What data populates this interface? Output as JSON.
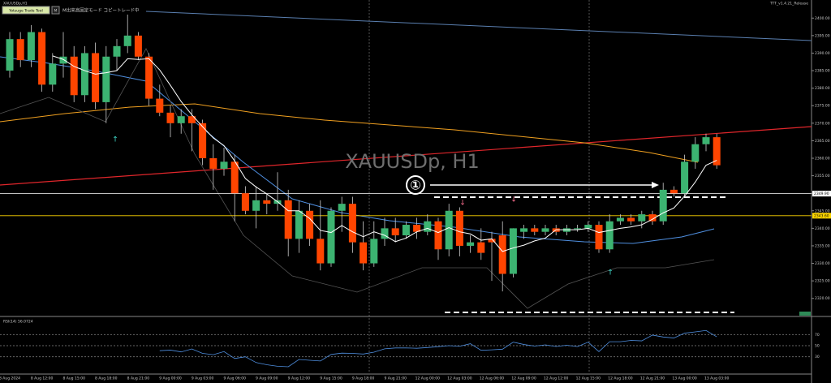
{
  "toolbar": {
    "symbol": "XAUUSDp,H1",
    "button": "Yotsuge Trade Tool",
    "mode": "M",
    "status": "M出来高固定モード コピートレード中",
    "version": "TTT_v1.4.21_Release"
  },
  "chart_data": {
    "type": "candlestick",
    "title": "XAUUSDp, H1",
    "annotation": "①",
    "up_color": "#3cb371",
    "down_color": "#ff4500",
    "categories": [
      "8 Aug 2024",
      null,
      null,
      "8 Aug 12:00",
      null,
      null,
      "8 Aug 15:00",
      null,
      null,
      "8 Aug 18:00",
      null,
      null,
      "8 Aug 21:00",
      null,
      null,
      "9 Aug 00:00",
      null,
      null,
      "9 Aug 03:00",
      null,
      null,
      "9 Aug 06:00",
      null,
      null,
      "9 Aug 09:00",
      null,
      null,
      "9 Aug 12:00",
      null,
      null,
      "9 Aug 15:00",
      null,
      null,
      "9 Aug 18:00",
      null,
      null,
      "9 Aug 21:00",
      null,
      null,
      "12 Aug 00:00",
      null,
      null,
      "12 Aug 03:00",
      null,
      null,
      "12 Aug 06:00",
      null,
      null,
      "12 Aug 09:00",
      null,
      null,
      "12 Aug 12:00",
      null,
      null,
      "12 Aug 15:00",
      null,
      null,
      "12 Aug 18:00",
      null,
      null,
      "12 Aug 21:00",
      null,
      null,
      "13 Aug 00:00",
      null,
      null,
      "13 Aug 03:00"
    ],
    "open": [
      2385,
      2394,
      2388,
      2396,
      2381,
      2387,
      2389,
      2378,
      2390,
      2376,
      2389,
      2392,
      2395,
      2389,
      2377,
      2373,
      2370,
      2372,
      2370,
      2360,
      2357,
      2359,
      2350,
      2345,
      2348,
      2347,
      2348,
      2337,
      2345,
      2337,
      2330,
      2345,
      2347,
      2336,
      2330,
      2337,
      2340,
      2338,
      2341,
      2339,
      2342,
      2334,
      2345,
      2335,
      2336,
      2337,
      2338,
      2327,
      2339,
      2340,
      2339,
      2340,
      2339,
      2340,
      2340,
      2341,
      2334,
      2342,
      2343,
      2342,
      2344,
      2342,
      2351,
      2350,
      2359,
      2364,
      2366
    ],
    "high": [
      2396,
      2396,
      2398,
      2397,
      2390,
      2396,
      2392,
      2392,
      2393,
      2392,
      2394,
      2401,
      2396,
      2390,
      2381,
      2375,
      2374,
      2374,
      2371,
      2364,
      2363,
      2361,
      2352,
      2352,
      2350,
      2356,
      2351,
      2348,
      2347,
      2348,
      2346,
      2349,
      2349,
      2342,
      2342,
      2343,
      2343,
      2342,
      2343,
      2344,
      2343,
      2347,
      2346,
      2338,
      2340,
      2339,
      2342,
      2340,
      2341,
      2341,
      2341,
      2341,
      2341,
      2341,
      2342,
      2342,
      2344,
      2344,
      2344,
      2345,
      2345,
      2353,
      2352,
      2361,
      2366,
      2367,
      2367
    ],
    "low": [
      2383,
      2386,
      2386,
      2379,
      2379,
      2383,
      2376,
      2376,
      2374,
      2370,
      2385,
      2390,
      2388,
      2375,
      2372,
      2366,
      2367,
      2362,
      2358,
      2351,
      2355,
      2342,
      2344,
      2340,
      2344,
      2345,
      2332,
      2333,
      2335,
      2328,
      2329,
      2339,
      2333,
      2328,
      2329,
      2335,
      2336,
      2337,
      2337,
      2338,
      2331,
      2332,
      2332,
      2333,
      2331,
      2325,
      2322,
      2326,
      2337,
      2338,
      2338,
      2338,
      2338,
      2339,
      2339,
      2333,
      2333,
      2341,
      2341,
      2340,
      2341,
      2341,
      2349,
      2349,
      2357,
      2362,
      2357
    ],
    "close": [
      2394,
      2388,
      2396,
      2381,
      2387,
      2389,
      2378,
      2390,
      2376,
      2389,
      2392,
      2395,
      2389,
      2377,
      2373,
      2370,
      2372,
      2370,
      2360,
      2357,
      2359,
      2350,
      2345,
      2348,
      2347,
      2348,
      2337,
      2345,
      2337,
      2330,
      2345,
      2347,
      2336,
      2330,
      2337,
      2340,
      2338,
      2341,
      2339,
      2342,
      2334,
      2345,
      2335,
      2336,
      2333,
      2336,
      2327,
      2340,
      2340,
      2339,
      2340,
      2339,
      2340,
      2340,
      2341,
      2334,
      2342,
      2343,
      2342,
      2344,
      2342,
      2351,
      2350,
      2359,
      2364,
      2366,
      2358
    ],
    "ylim": [
      2316,
      2404
    ],
    "yticks": [
      {
        "value": 2320,
        "label": "2320.00"
      },
      {
        "value": 2325,
        "label": "2325.00"
      },
      {
        "value": 2330,
        "label": "2330.00"
      },
      {
        "value": 2335,
        "label": "2335.00"
      },
      {
        "value": 2340,
        "label": "2340.00"
      },
      {
        "value": 2345,
        "label": "2345.00"
      },
      {
        "value": 2350,
        "label": "2350.00"
      },
      {
        "value": 2355,
        "label": "2355.00"
      },
      {
        "value": 2360,
        "label": "2360.00"
      },
      {
        "value": 2365,
        "label": "2365.00"
      },
      {
        "value": 2370,
        "label": "2370.00"
      },
      {
        "value": 2375,
        "label": "2375.00"
      },
      {
        "value": 2380,
        "label": "2380.00"
      },
      {
        "value": 2385,
        "label": "2385.00"
      },
      {
        "value": 2390,
        "label": "2390.00"
      },
      {
        "value": 2395,
        "label": "2395.00"
      },
      {
        "value": 2400,
        "label": "2400.00"
      }
    ],
    "price_lines": [
      {
        "value": 2349.9,
        "label": "2349.90",
        "color": "#ffffff"
      },
      {
        "value": 2343.6,
        "label": "2343.60",
        "color": "#ffd700"
      }
    ],
    "rsi": {
      "label": "RSI(14) 56.0724",
      "ylim": [
        0,
        100
      ],
      "yticks": [
        30,
        50,
        70
      ],
      "color": "#4f8fe0"
    }
  }
}
